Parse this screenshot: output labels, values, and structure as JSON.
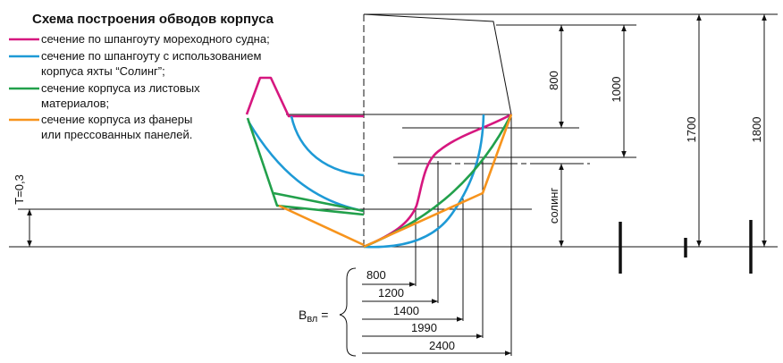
{
  "title": "Схема построения обводов корпуса",
  "legend": [
    {
      "lines": [
        "сечение по шпангоуту мореходного судна;"
      ]
    },
    {
      "lines": [
        "сечение по шпангоуту с использованием",
        "корпуса яхты “Солинг”;"
      ]
    },
    {
      "lines": [
        "сечение корпуса из листовых",
        "материалов;"
      ]
    },
    {
      "lines": [
        "сечение корпуса из фанеры",
        "или прессованных панелей."
      ]
    }
  ],
  "heights": [
    "800",
    "1000",
    "1700",
    "1800"
  ],
  "soling": "солинг",
  "draft": "T=0,3",
  "widths": [
    "800",
    "1200",
    "1400",
    "1990",
    "2400"
  ],
  "beam_label": {
    "main": "B",
    "sub": "вл",
    "eq": " ="
  }
}
